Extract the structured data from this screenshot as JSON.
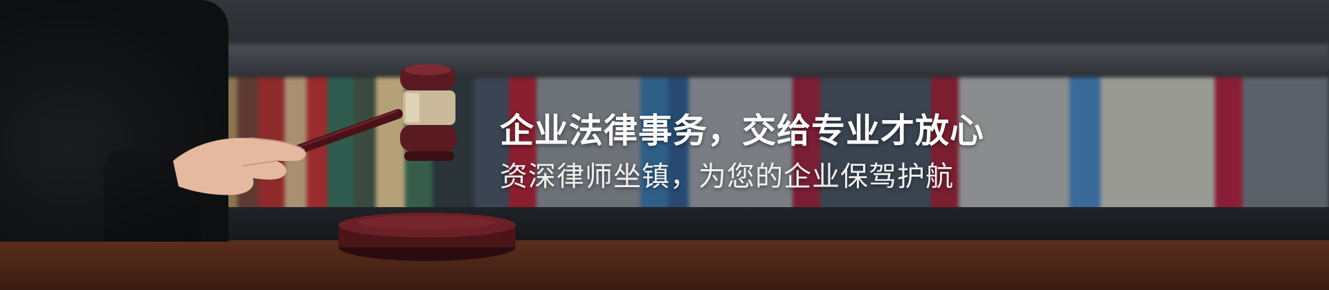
{
  "banner": {
    "headline": "企业法律事务，交给专业才放心",
    "subline": "资深律师坐镇，为您的企业保驾护航"
  },
  "colors": {
    "table": "#4a2416",
    "robe": "#0e0f11",
    "gavel_wood": "#5a1a22",
    "gavel_band": "#c9b99a",
    "text": "#ffffff"
  }
}
